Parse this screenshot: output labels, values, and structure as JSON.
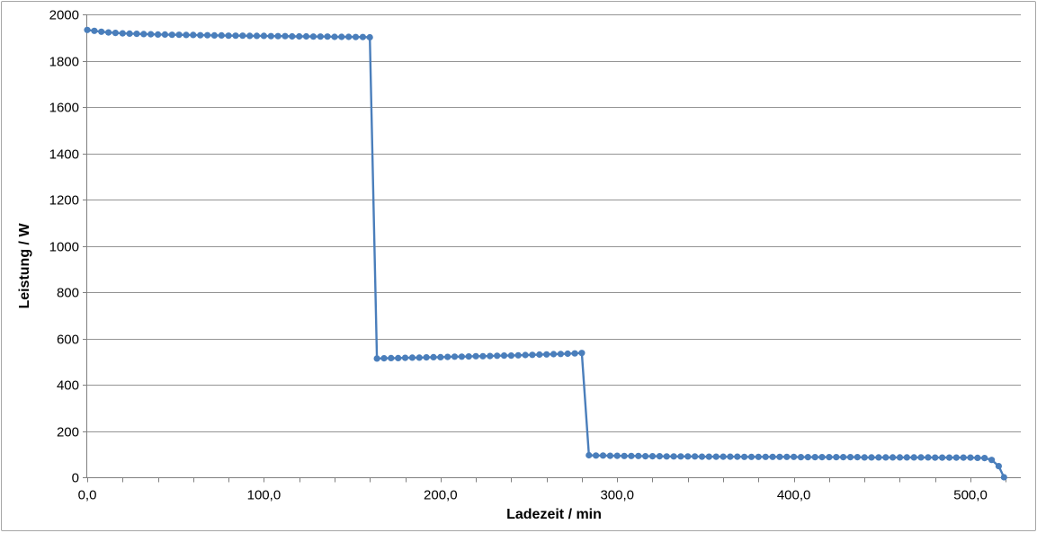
{
  "page": {
    "background": "#ffffff"
  },
  "chart": {
    "frame_border_color": "#a6a6a6",
    "plot_background": "#ffffff",
    "gridline_color": "#949494",
    "axis_color": "#7f7f7f",
    "tick_color": "#7f7f7f",
    "tick_label_color": "#000000",
    "series_color": "#4a7ebb"
  },
  "chart_data": {
    "type": "line",
    "title": "",
    "xlabel": "Ladezeit / min",
    "ylabel": "Leistung / W",
    "xlim": [
      0,
      528.5
    ],
    "ylim": [
      0,
      2000
    ],
    "grid": "horizontal",
    "legend": "none",
    "x_major_ticks": [
      0,
      100,
      200,
      300,
      400,
      500
    ],
    "x_tick_labels": [
      "0,0",
      "100,0",
      "200,0",
      "300,0",
      "400,0",
      "500,0"
    ],
    "x_minor_tick_interval": 20,
    "y_ticks": [
      0,
      200,
      400,
      600,
      800,
      1000,
      1200,
      1400,
      1600,
      1800,
      2000
    ],
    "y_tick_labels": [
      "0",
      "200",
      "400",
      "600",
      "800",
      "1000",
      "1200",
      "1400",
      "1600",
      "1800",
      "2000"
    ],
    "series": [
      {
        "name": "Leistung",
        "color": "#4a7ebb",
        "marker": "circle",
        "points": [
          [
            0,
            1933
          ],
          [
            4,
            1929
          ],
          [
            8,
            1925
          ],
          [
            12,
            1922
          ],
          [
            16,
            1920
          ],
          [
            20,
            1918
          ],
          [
            24,
            1917
          ],
          [
            28,
            1916
          ],
          [
            32,
            1915
          ],
          [
            36,
            1914
          ],
          [
            40,
            1913
          ],
          [
            44,
            1913
          ],
          [
            48,
            1912
          ],
          [
            52,
            1912
          ],
          [
            56,
            1911
          ],
          [
            60,
            1911
          ],
          [
            64,
            1910
          ],
          [
            68,
            1910
          ],
          [
            72,
            1909
          ],
          [
            76,
            1909
          ],
          [
            80,
            1908
          ],
          [
            84,
            1908
          ],
          [
            88,
            1908
          ],
          [
            92,
            1907
          ],
          [
            96,
            1907
          ],
          [
            100,
            1907
          ],
          [
            104,
            1906
          ],
          [
            108,
            1906
          ],
          [
            112,
            1906
          ],
          [
            116,
            1905
          ],
          [
            120,
            1905
          ],
          [
            124,
            1905
          ],
          [
            128,
            1904
          ],
          [
            132,
            1904
          ],
          [
            136,
            1904
          ],
          [
            140,
            1903
          ],
          [
            144,
            1903
          ],
          [
            148,
            1903
          ],
          [
            152,
            1902
          ],
          [
            156,
            1902
          ],
          [
            160,
            1901
          ],
          [
            164,
            513
          ],
          [
            168,
            514
          ],
          [
            172,
            515
          ],
          [
            176,
            515
          ],
          [
            180,
            516
          ],
          [
            184,
            517
          ],
          [
            188,
            517
          ],
          [
            192,
            518
          ],
          [
            196,
            519
          ],
          [
            200,
            519
          ],
          [
            204,
            520
          ],
          [
            208,
            521
          ],
          [
            212,
            521
          ],
          [
            216,
            522
          ],
          [
            220,
            523
          ],
          [
            224,
            523
          ],
          [
            228,
            524
          ],
          [
            232,
            525
          ],
          [
            236,
            526
          ],
          [
            240,
            526
          ],
          [
            244,
            527
          ],
          [
            248,
            528
          ],
          [
            252,
            529
          ],
          [
            256,
            530
          ],
          [
            260,
            531
          ],
          [
            264,
            532
          ],
          [
            268,
            533
          ],
          [
            272,
            534
          ],
          [
            276,
            535
          ],
          [
            280,
            537
          ],
          [
            284,
            95
          ],
          [
            288,
            94
          ],
          [
            292,
            94
          ],
          [
            296,
            93
          ],
          [
            300,
            93
          ],
          [
            304,
            92
          ],
          [
            308,
            92
          ],
          [
            312,
            92
          ],
          [
            316,
            91
          ],
          [
            320,
            91
          ],
          [
            324,
            91
          ],
          [
            328,
            90
          ],
          [
            332,
            90
          ],
          [
            336,
            90
          ],
          [
            340,
            90
          ],
          [
            344,
            90
          ],
          [
            348,
            89
          ],
          [
            352,
            89
          ],
          [
            356,
            89
          ],
          [
            360,
            89
          ],
          [
            364,
            89
          ],
          [
            368,
            89
          ],
          [
            372,
            88
          ],
          [
            376,
            88
          ],
          [
            380,
            88
          ],
          [
            384,
            88
          ],
          [
            388,
            88
          ],
          [
            392,
            88
          ],
          [
            396,
            88
          ],
          [
            400,
            88
          ],
          [
            404,
            87
          ],
          [
            408,
            87
          ],
          [
            412,
            87
          ],
          [
            416,
            87
          ],
          [
            420,
            87
          ],
          [
            424,
            87
          ],
          [
            428,
            87
          ],
          [
            432,
            87
          ],
          [
            436,
            87
          ],
          [
            440,
            86
          ],
          [
            444,
            86
          ],
          [
            448,
            86
          ],
          [
            452,
            86
          ],
          [
            456,
            86
          ],
          [
            460,
            86
          ],
          [
            464,
            86
          ],
          [
            468,
            86
          ],
          [
            472,
            86
          ],
          [
            476,
            86
          ],
          [
            480,
            85
          ],
          [
            484,
            85
          ],
          [
            488,
            85
          ],
          [
            492,
            85
          ],
          [
            496,
            85
          ],
          [
            500,
            85
          ],
          [
            504,
            84
          ],
          [
            508,
            83
          ],
          [
            512,
            75
          ],
          [
            516,
            48
          ],
          [
            519,
            0
          ]
        ]
      }
    ]
  }
}
